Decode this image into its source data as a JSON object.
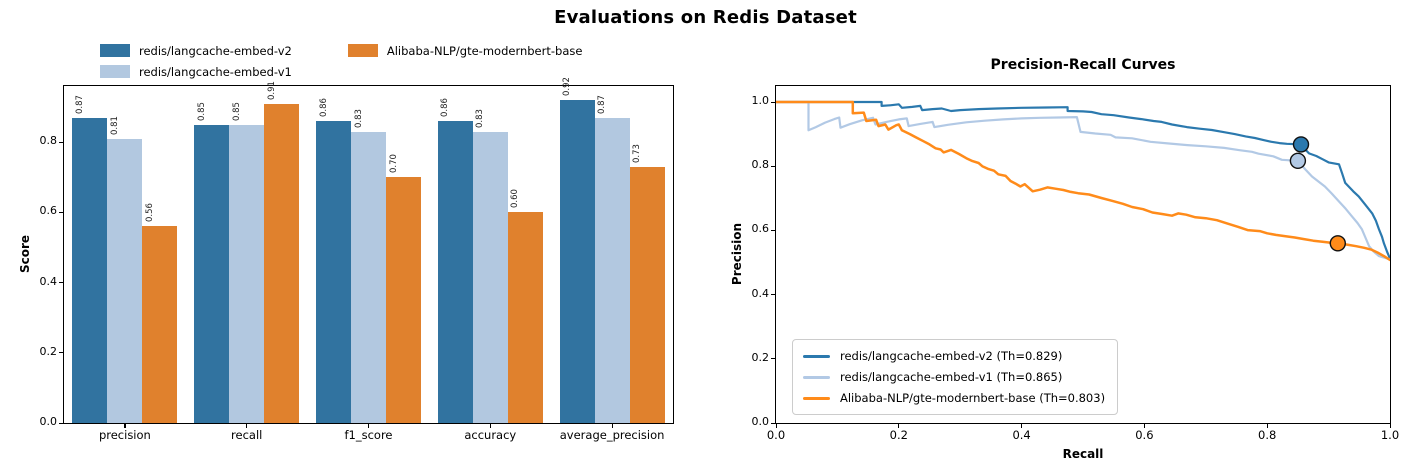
{
  "figure": {
    "title": "Evaluations on Redis Dataset"
  },
  "chart_data": [
    {
      "type": "bar",
      "name": "metrics-bar-chart",
      "ylabel": "Score",
      "ylim": [
        0,
        0.96
      ],
      "yticks": [
        0.0,
        0.2,
        0.4,
        0.6,
        0.8
      ],
      "grid": false,
      "legend_position": "upper-left",
      "legend_columns": 2,
      "categories": [
        "precision",
        "recall",
        "f1_score",
        "accuracy",
        "average_precision"
      ],
      "series": [
        {
          "name": "redis/langcache-embed-v2",
          "color": "#3173a0",
          "values": [
            0.87,
            0.85,
            0.86,
            0.86,
            0.92
          ]
        },
        {
          "name": "redis/langcache-embed-v1",
          "color": "#b2c8e0",
          "values": [
            0.81,
            0.85,
            0.83,
            0.83,
            0.87
          ]
        },
        {
          "name": "Alibaba-NLP/gte-modernbert-base",
          "color": "#e0812d",
          "values": [
            0.56,
            0.91,
            0.7,
            0.6,
            0.73
          ]
        }
      ]
    },
    {
      "type": "line",
      "name": "precision-recall-curves",
      "title": "Precision-Recall Curves",
      "xlabel": "Recall",
      "ylabel": "Precision",
      "xlim": [
        0,
        1.0
      ],
      "ylim": [
        0,
        1.05
      ],
      "xticks": [
        0.0,
        0.2,
        0.4,
        0.6,
        0.8,
        1.0
      ],
      "yticks": [
        0.0,
        0.2,
        0.4,
        0.6,
        0.8,
        1.0
      ],
      "grid": false,
      "legend_position": "lower-left",
      "series": [
        {
          "name": "redis/langcache-embed-v2",
          "legend_label": "redis/langcache-embed-v2 (Th=0.829)",
          "threshold": 0.829,
          "color": "#2b79ae",
          "line_width": 2.2,
          "threshold_marker": {
            "recall": 0.855,
            "precision": 0.868
          },
          "points": [
            [
              0,
              1
            ],
            [
              0.172,
              1
            ],
            [
              0.172,
              0.988
            ],
            [
              0.186,
              0.99
            ],
            [
              0.2,
              0.993
            ],
            [
              0.205,
              0.982
            ],
            [
              0.222,
              0.985
            ],
            [
              0.235,
              0.988
            ],
            [
              0.238,
              0.975
            ],
            [
              0.255,
              0.978
            ],
            [
              0.27,
              0.98
            ],
            [
              0.285,
              0.972
            ],
            [
              0.3,
              0.975
            ],
            [
              0.33,
              0.978
            ],
            [
              0.36,
              0.98
            ],
            [
              0.4,
              0.982
            ],
            [
              0.44,
              0.983
            ],
            [
              0.475,
              0.984
            ],
            [
              0.475,
              0.972
            ],
            [
              0.5,
              0.971
            ],
            [
              0.514,
              0.969
            ],
            [
              0.53,
              0.962
            ],
            [
              0.55,
              0.959
            ],
            [
              0.575,
              0.952
            ],
            [
              0.595,
              0.947
            ],
            [
              0.615,
              0.941
            ],
            [
              0.628,
              0.938
            ],
            [
              0.645,
              0.93
            ],
            [
              0.669,
              0.922
            ],
            [
              0.69,
              0.917
            ],
            [
              0.71,
              0.913
            ],
            [
              0.73,
              0.906
            ],
            [
              0.747,
              0.9
            ],
            [
              0.765,
              0.893
            ],
            [
              0.78,
              0.888
            ],
            [
              0.795,
              0.881
            ],
            [
              0.807,
              0.876
            ],
            [
              0.82,
              0.872
            ],
            [
              0.832,
              0.87
            ],
            [
              0.855,
              0.868
            ],
            [
              0.862,
              0.852
            ],
            [
              0.868,
              0.84
            ],
            [
              0.88,
              0.832
            ],
            [
              0.89,
              0.822
            ],
            [
              0.9,
              0.812
            ],
            [
              0.917,
              0.806
            ],
            [
              0.922,
              0.778
            ],
            [
              0.927,
              0.748
            ],
            [
              0.94,
              0.722
            ],
            [
              0.949,
              0.706
            ],
            [
              0.96,
              0.68
            ],
            [
              0.971,
              0.653
            ],
            [
              0.977,
              0.63
            ],
            [
              0.982,
              0.604
            ],
            [
              0.987,
              0.58
            ],
            [
              0.99,
              0.56
            ],
            [
              0.995,
              0.535
            ],
            [
              1,
              0.512
            ]
          ]
        },
        {
          "name": "redis/langcache-embed-v1",
          "legend_label": "redis/langcache-embed-v1 (Th=0.865)",
          "threshold": 0.865,
          "color": "#b2c9e5",
          "line_width": 2.2,
          "threshold_marker": {
            "recall": 0.85,
            "precision": 0.817
          },
          "points": [
            [
              0,
              1
            ],
            [
              0.053,
              1
            ],
            [
              0.053,
              0.912
            ],
            [
              0.065,
              0.922
            ],
            [
              0.08,
              0.936
            ],
            [
              0.095,
              0.947
            ],
            [
              0.103,
              0.952
            ],
            [
              0.105,
              0.92
            ],
            [
              0.12,
              0.931
            ],
            [
              0.14,
              0.943
            ],
            [
              0.158,
              0.951
            ],
            [
              0.162,
              0.93
            ],
            [
              0.18,
              0.938
            ],
            [
              0.2,
              0.946
            ],
            [
              0.213,
              0.949
            ],
            [
              0.216,
              0.925
            ],
            [
              0.235,
              0.932
            ],
            [
              0.255,
              0.938
            ],
            [
              0.258,
              0.922
            ],
            [
              0.28,
              0.929
            ],
            [
              0.31,
              0.937
            ],
            [
              0.34,
              0.942
            ],
            [
              0.37,
              0.946
            ],
            [
              0.4,
              0.949
            ],
            [
              0.43,
              0.951
            ],
            [
              0.46,
              0.952
            ],
            [
              0.49,
              0.953
            ],
            [
              0.496,
              0.907
            ],
            [
              0.52,
              0.902
            ],
            [
              0.545,
              0.898
            ],
            [
              0.553,
              0.89
            ],
            [
              0.58,
              0.887
            ],
            [
              0.61,
              0.876
            ],
            [
              0.64,
              0.871
            ],
            [
              0.67,
              0.866
            ],
            [
              0.7,
              0.862
            ],
            [
              0.73,
              0.857
            ],
            [
              0.755,
              0.85
            ],
            [
              0.775,
              0.845
            ],
            [
              0.786,
              0.839
            ],
            [
              0.81,
              0.831
            ],
            [
              0.824,
              0.82
            ],
            [
              0.85,
              0.817
            ],
            [
              0.862,
              0.79
            ],
            [
              0.873,
              0.768
            ],
            [
              0.885,
              0.75
            ],
            [
              0.894,
              0.737
            ],
            [
              0.905,
              0.715
            ],
            [
              0.917,
              0.69
            ],
            [
              0.928,
              0.667
            ],
            [
              0.938,
              0.644
            ],
            [
              0.947,
              0.623
            ],
            [
              0.954,
              0.604
            ],
            [
              0.96,
              0.578
            ],
            [
              0.966,
              0.551
            ],
            [
              0.973,
              0.535
            ],
            [
              0.982,
              0.52
            ],
            [
              1,
              0.51
            ]
          ]
        },
        {
          "name": "Alibaba-NLP/gte-modernbert-base",
          "legend_label": "Alibaba-NLP/gte-modernbert-base (Th=0.803)",
          "threshold": 0.803,
          "color": "#ff8b1a",
          "line_width": 2.5,
          "threshold_marker": {
            "recall": 0.915,
            "precision": 0.56
          },
          "points": [
            [
              0,
              1
            ],
            [
              0.125,
              1
            ],
            [
              0.125,
              0.965
            ],
            [
              0.143,
              0.967
            ],
            [
              0.147,
              0.941
            ],
            [
              0.163,
              0.945
            ],
            [
              0.167,
              0.925
            ],
            [
              0.178,
              0.93
            ],
            [
              0.183,
              0.914
            ],
            [
              0.196,
              0.928
            ],
            [
              0.2,
              0.93
            ],
            [
              0.205,
              0.912
            ],
            [
              0.218,
              0.9
            ],
            [
              0.228,
              0.89
            ],
            [
              0.24,
              0.878
            ],
            [
              0.25,
              0.868
            ],
            [
              0.26,
              0.856
            ],
            [
              0.268,
              0.852
            ],
            [
              0.273,
              0.843
            ],
            [
              0.285,
              0.851
            ],
            [
              0.298,
              0.838
            ],
            [
              0.31,
              0.825
            ],
            [
              0.32,
              0.816
            ],
            [
              0.33,
              0.81
            ],
            [
              0.336,
              0.8
            ],
            [
              0.345,
              0.792
            ],
            [
              0.355,
              0.786
            ],
            [
              0.362,
              0.775
            ],
            [
              0.374,
              0.77
            ],
            [
              0.382,
              0.754
            ],
            [
              0.39,
              0.746
            ],
            [
              0.398,
              0.737
            ],
            [
              0.405,
              0.744
            ],
            [
              0.418,
              0.722
            ],
            [
              0.43,
              0.727
            ],
            [
              0.442,
              0.734
            ],
            [
              0.455,
              0.73
            ],
            [
              0.468,
              0.726
            ],
            [
              0.48,
              0.72
            ],
            [
              0.492,
              0.716
            ],
            [
              0.51,
              0.712
            ],
            [
              0.53,
              0.701
            ],
            [
              0.548,
              0.692
            ],
            [
              0.565,
              0.683
            ],
            [
              0.58,
              0.673
            ],
            [
              0.598,
              0.666
            ],
            [
              0.613,
              0.656
            ],
            [
              0.63,
              0.651
            ],
            [
              0.645,
              0.646
            ],
            [
              0.655,
              0.653
            ],
            [
              0.668,
              0.649
            ],
            [
              0.683,
              0.641
            ],
            [
              0.7,
              0.638
            ],
            [
              0.718,
              0.632
            ],
            [
              0.736,
              0.621
            ],
            [
              0.753,
              0.611
            ],
            [
              0.768,
              0.601
            ],
            [
              0.788,
              0.598
            ],
            [
              0.8,
              0.591
            ],
            [
              0.814,
              0.586
            ],
            [
              0.83,
              0.582
            ],
            [
              0.845,
              0.578
            ],
            [
              0.86,
              0.573
            ],
            [
              0.875,
              0.568
            ],
            [
              0.89,
              0.565
            ],
            [
              0.902,
              0.562
            ],
            [
              0.915,
              0.56
            ],
            [
              0.93,
              0.556
            ],
            [
              0.945,
              0.551
            ],
            [
              0.958,
              0.546
            ],
            [
              0.97,
              0.54
            ],
            [
              0.98,
              0.531
            ],
            [
              0.99,
              0.52
            ],
            [
              1,
              0.508
            ]
          ]
        }
      ]
    }
  ]
}
